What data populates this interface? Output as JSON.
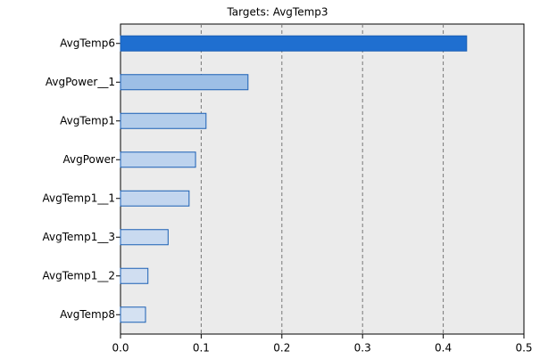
{
  "chart_data": {
    "type": "hbar",
    "title": "Targets: AvgTemp3",
    "categories": [
      "AvgTemp6",
      "AvgPower__1",
      "AvgTemp1",
      "AvgPower",
      "AvgTemp1__1",
      "AvgTemp1__3",
      "AvgTemp1__2",
      "AvgTemp8"
    ],
    "values": [
      0.429,
      0.158,
      0.106,
      0.093,
      0.085,
      0.059,
      0.034,
      0.031
    ],
    "colors": [
      "#1f6fd0",
      "#9dbfe6",
      "#b3cdeb",
      "#bdd3ee",
      "#c3d6ef",
      "#c9daf0",
      "#d0def1",
      "#d4e1f2"
    ],
    "xlim": [
      0,
      0.5
    ],
    "xticks": [
      {
        "value": 0,
        "label": "0.0"
      },
      0.1,
      0.2,
      0.3,
      0.4,
      0.5
    ],
    "grid": true
  }
}
